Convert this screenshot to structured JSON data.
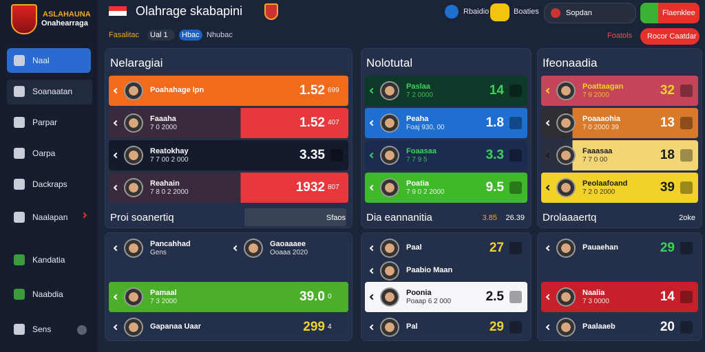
{
  "header": {
    "logo": [
      "ASLAHAUNA",
      "Onahearraga"
    ],
    "title": "Olahrage skabapini",
    "tabs": [
      "Fasalitac",
      "Ual 1",
      "Hbac",
      "Nhubac"
    ],
    "actions": [
      "Rbaidio",
      "Boaties",
      "Sopdan",
      "Flaenklee"
    ],
    "links": [
      "Foatols",
      "Rocor Caatdar"
    ]
  },
  "sidebar": {
    "items": [
      "Naal",
      "Soanaatan",
      "Parpar",
      "Oarpa",
      "Dackraps",
      "Naalapan",
      "Kandatia",
      "Naabdia",
      "Sens"
    ]
  },
  "panels": [
    {
      "title": "Nelaragiai",
      "rows": [
        {
          "name": "Poahahage lpn",
          "score": "1.52",
          "extra": "699"
        },
        {
          "name": "Faaaha",
          "sub": "7 0 2000",
          "score": "1.52",
          "extra": "407"
        },
        {
          "name": "Reatokhay",
          "sub": "7 7 00 2 000",
          "score": "3.35"
        },
        {
          "name": "Reahain",
          "sub": "7 8 0 2 2000",
          "score": "1932",
          "extra": "807"
        }
      ],
      "section": "Proi soanertiq",
      "section_values": [
        "Sfaos"
      ],
      "bottom_rows": [
        {
          "name": "Pancahhad",
          "sub": "Gens"
        },
        {
          "name": "Gaoaaaee",
          "sub": "Ooaaa 2020"
        },
        {
          "name": "Pamaal",
          "sub": "7 3 2000",
          "score": "39.0",
          "extra": "0"
        },
        {
          "name": "Gapanaa Uaar",
          "score": "299",
          "extra": "4"
        }
      ]
    },
    {
      "title": "Nolotutal",
      "rows": [
        {
          "name": "Paslaa",
          "sub": "7 2 0000",
          "score": "14"
        },
        {
          "name": "Peaha",
          "sub": "Foaj 930, 00",
          "score": "1.8"
        },
        {
          "name": "Foaasaa",
          "sub": "7 7 9 5",
          "score": "3.3"
        },
        {
          "name": "Poatia",
          "sub": "7 9 0 2 2000",
          "score": "9.5"
        }
      ],
      "section": "Dia eannanitia",
      "section_values": [
        "3.85",
        "26.39"
      ],
      "bottom_rows": [
        {
          "name": "Paal",
          "score": "27"
        },
        {
          "name": "Paabio Maan"
        },
        {
          "name": "Poonia",
          "sub": "Poaap 6 2 000",
          "score": "2.5"
        },
        {
          "name": "Pal",
          "score": "29"
        }
      ]
    },
    {
      "title": "Ifeonaadia",
      "rows": [
        {
          "name": "Poattaagan",
          "sub": "7 9 2000",
          "score": "32"
        },
        {
          "name": "Poaaaohia",
          "sub": "7 0 2000 39",
          "score": "13"
        },
        {
          "name": "Faaasaa",
          "sub": "7 7 0 00",
          "score": "18"
        },
        {
          "name": "Peolaafoand",
          "sub": "7 2 0 2000",
          "score": "39"
        }
      ],
      "section": "Drolaaaertq",
      "section_values": [
        "2oke"
      ],
      "bottom_rows": [
        {
          "name": "Pauaehan",
          "score": "29"
        },
        {
          "name": "Naalia",
          "sub": "7 3 0000",
          "score": "14"
        },
        {
          "name": "Paalaaeb",
          "score": "20"
        }
      ]
    }
  ]
}
